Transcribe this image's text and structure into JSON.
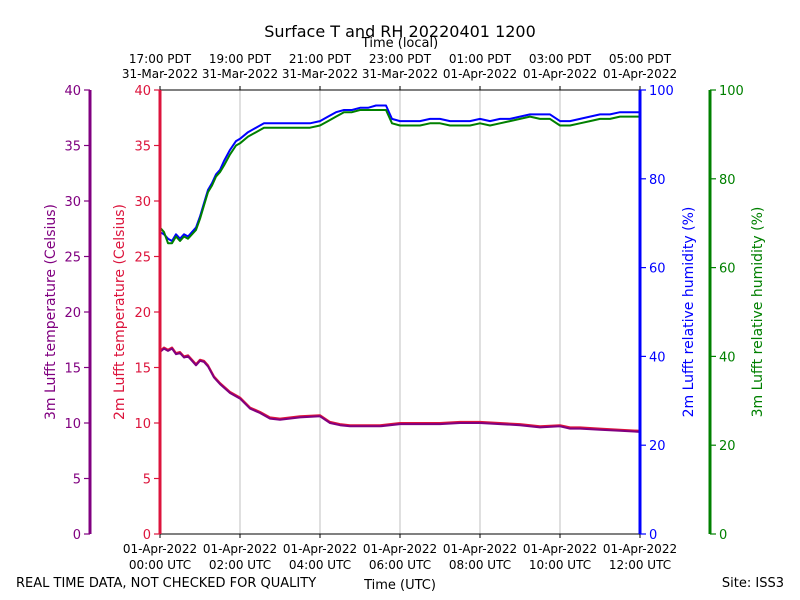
{
  "chart_data": {
    "type": "line",
    "title": "Surface T and RH 20220401 1200",
    "xlabel_bottom": "Time (UTC)",
    "xlabel_top": "Time (local)",
    "x_range_hours_utc": [
      0,
      12
    ],
    "bottom_ticks": [
      {
        "h": 0,
        "l1": "01-Apr-2022",
        "l2": "00:00 UTC"
      },
      {
        "h": 2,
        "l1": "01-Apr-2022",
        "l2": "02:00 UTC"
      },
      {
        "h": 4,
        "l1": "01-Apr-2022",
        "l2": "04:00 UTC"
      },
      {
        "h": 6,
        "l1": "01-Apr-2022",
        "l2": "06:00 UTC"
      },
      {
        "h": 8,
        "l1": "01-Apr-2022",
        "l2": "08:00 UTC"
      },
      {
        "h": 10,
        "l1": "01-Apr-2022",
        "l2": "10:00 UTC"
      },
      {
        "h": 12,
        "l1": "01-Apr-2022",
        "l2": "12:00 UTC"
      }
    ],
    "top_ticks": [
      {
        "h": 0,
        "l1": "17:00 PDT",
        "l2": "31-Mar-2022"
      },
      {
        "h": 2,
        "l1": "19:00 PDT",
        "l2": "31-Mar-2022"
      },
      {
        "h": 4,
        "l1": "21:00 PDT",
        "l2": "31-Mar-2022"
      },
      {
        "h": 6,
        "l1": "23:00 PDT",
        "l2": "31-Mar-2022"
      },
      {
        "h": 8,
        "l1": "01:00 PDT",
        "l2": "01-Apr-2022"
      },
      {
        "h": 10,
        "l1": "03:00 PDT",
        "l2": "01-Apr-2022"
      },
      {
        "h": 12,
        "l1": "05:00 PDT",
        "l2": "01-Apr-2022"
      }
    ],
    "axes": {
      "t3m": {
        "label": "3m Lufft temperature (Celsius)",
        "range": [
          0,
          40
        ],
        "ticks": [
          0,
          5,
          10,
          15,
          20,
          25,
          30,
          35,
          40
        ],
        "color": "#800080"
      },
      "t2m": {
        "label": "2m Lufft temperature (Celsius)",
        "range": [
          0,
          40
        ],
        "ticks": [
          0,
          5,
          10,
          15,
          20,
          25,
          30,
          35,
          40
        ],
        "color": "#dc143c"
      },
      "rh2m": {
        "label": "2m Lufft relative humidity (%)",
        "range": [
          0,
          100
        ],
        "ticks": [
          0,
          20,
          40,
          60,
          80,
          100
        ],
        "color": "#0000ff"
      },
      "rh3m": {
        "label": "3m Lufft relative humidity (%)",
        "range": [
          0,
          100
        ],
        "ticks": [
          0,
          20,
          40,
          60,
          80,
          100
        ],
        "color": "#008000"
      }
    },
    "series": [
      {
        "name": "2m Lufft relative humidity",
        "axis": "rh2m",
        "color": "#0000ff",
        "x": [
          0,
          0.1,
          0.2,
          0.3,
          0.4,
          0.5,
          0.6,
          0.7,
          0.8,
          0.9,
          1.0,
          1.1,
          1.2,
          1.3,
          1.4,
          1.5,
          1.6,
          1.75,
          1.9,
          2.0,
          2.2,
          2.4,
          2.6,
          2.8,
          3.0,
          3.25,
          3.5,
          3.75,
          4.0,
          4.2,
          4.4,
          4.6,
          4.8,
          5.0,
          5.2,
          5.4,
          5.5,
          5.65,
          5.8,
          6.0,
          6.25,
          6.5,
          6.75,
          7.0,
          7.25,
          7.5,
          7.75,
          8.0,
          8.25,
          8.5,
          8.75,
          9.0,
          9.25,
          9.5,
          9.75,
          10.0,
          10.25,
          10.5,
          10.75,
          11.0,
          11.25,
          11.5,
          11.75,
          12.0
        ],
        "y": [
          68,
          67.5,
          66.5,
          66,
          67.5,
          66.5,
          67.5,
          67,
          68,
          69,
          71.5,
          74.5,
          77.5,
          79,
          81,
          82,
          84,
          86.5,
          88.5,
          89,
          90.5,
          91.5,
          92.5,
          92.5,
          92.5,
          92.5,
          92.5,
          92.5,
          93,
          94,
          95,
          95.5,
          95.5,
          96,
          96,
          96.5,
          96.5,
          96.5,
          93.5,
          93,
          93,
          93,
          93.5,
          93.5,
          93,
          93,
          93,
          93.5,
          93,
          93.5,
          93.5,
          94,
          94.5,
          94.5,
          94.5,
          93,
          93,
          93.5,
          94,
          94.5,
          94.5,
          95,
          95,
          95
        ]
      },
      {
        "name": "3m Lufft relative humidity",
        "axis": "rh3m",
        "color": "#008000",
        "x": [
          0,
          0.1,
          0.2,
          0.3,
          0.4,
          0.5,
          0.6,
          0.7,
          0.8,
          0.9,
          1.0,
          1.1,
          1.2,
          1.3,
          1.4,
          1.5,
          1.6,
          1.75,
          1.9,
          2.0,
          2.2,
          2.4,
          2.6,
          2.8,
          3.0,
          3.25,
          3.5,
          3.75,
          4.0,
          4.2,
          4.4,
          4.6,
          4.8,
          5.0,
          5.2,
          5.4,
          5.5,
          5.65,
          5.8,
          6.0,
          6.25,
          6.5,
          6.75,
          7.0,
          7.25,
          7.5,
          7.75,
          8.0,
          8.25,
          8.5,
          8.75,
          9.0,
          9.25,
          9.5,
          9.75,
          10.0,
          10.25,
          10.5,
          10.75,
          11.0,
          11.25,
          11.5,
          11.75,
          12.0
        ],
        "y": [
          69,
          68,
          65.5,
          65.5,
          67,
          66,
          67,
          66.5,
          67.5,
          68.5,
          71,
          74,
          77,
          78.5,
          80.5,
          81.5,
          83,
          85.5,
          87.5,
          88,
          89.5,
          90.5,
          91.5,
          91.5,
          91.5,
          91.5,
          91.5,
          91.5,
          92,
          93,
          94,
          95,
          95,
          95.5,
          95.5,
          95.5,
          95.5,
          95.5,
          92.5,
          92,
          92,
          92,
          92.5,
          92.5,
          92,
          92,
          92,
          92.5,
          92,
          92.5,
          93,
          93.5,
          94,
          93.5,
          93.5,
          92,
          92,
          92.5,
          93,
          93.5,
          93.5,
          94,
          94,
          94
        ]
      },
      {
        "name": "2m Lufft temperature",
        "axis": "t2m",
        "color": "#dc143c",
        "x": [
          0,
          0.1,
          0.2,
          0.3,
          0.4,
          0.5,
          0.6,
          0.7,
          0.8,
          0.9,
          1.0,
          1.1,
          1.2,
          1.35,
          1.5,
          1.75,
          2.0,
          2.25,
          2.5,
          2.75,
          3.0,
          3.5,
          4.0,
          4.25,
          4.5,
          4.75,
          5.0,
          5.5,
          6.0,
          6.5,
          7.0,
          7.5,
          8.0,
          8.5,
          9.0,
          9.5,
          10.0,
          10.25,
          10.5,
          11.0,
          11.5,
          12.0
        ],
        "y": [
          16.5,
          16.8,
          16.6,
          16.8,
          16.3,
          16.4,
          16,
          16.1,
          15.7,
          15.3,
          15.7,
          15.6,
          15.2,
          14.2,
          13.6,
          12.8,
          12.3,
          11.4,
          11.0,
          10.5,
          10.4,
          10.6,
          10.7,
          10.1,
          9.9,
          9.8,
          9.8,
          9.8,
          10.0,
          10.0,
          10.0,
          10.1,
          10.1,
          10.0,
          9.9,
          9.7,
          9.8,
          9.6,
          9.6,
          9.5,
          9.4,
          9.3
        ]
      },
      {
        "name": "3m Lufft temperature",
        "axis": "t3m",
        "color": "#800080",
        "x": [
          0,
          0.1,
          0.2,
          0.3,
          0.4,
          0.5,
          0.6,
          0.7,
          0.8,
          0.9,
          1.0,
          1.1,
          1.2,
          1.35,
          1.5,
          1.75,
          2.0,
          2.25,
          2.5,
          2.75,
          3.0,
          3.5,
          4.0,
          4.25,
          4.5,
          4.75,
          5.0,
          5.5,
          6.0,
          6.5,
          7.0,
          7.5,
          8.0,
          8.5,
          9.0,
          9.5,
          10.0,
          10.25,
          10.5,
          11.0,
          11.5,
          12.0
        ],
        "y": [
          16.4,
          16.7,
          16.5,
          16.7,
          16.2,
          16.3,
          15.9,
          16.0,
          15.6,
          15.2,
          15.6,
          15.5,
          15.1,
          14.1,
          13.5,
          12.7,
          12.2,
          11.3,
          10.9,
          10.4,
          10.3,
          10.5,
          10.6,
          10.0,
          9.8,
          9.7,
          9.7,
          9.7,
          9.9,
          9.9,
          9.9,
          10.0,
          10.0,
          9.9,
          9.8,
          9.6,
          9.7,
          9.5,
          9.5,
          9.4,
          9.3,
          9.2
        ]
      }
    ]
  },
  "footer": {
    "disclaimer": "REAL TIME DATA, NOT CHECKED FOR QUALITY",
    "site": "Site: ISS3"
  }
}
